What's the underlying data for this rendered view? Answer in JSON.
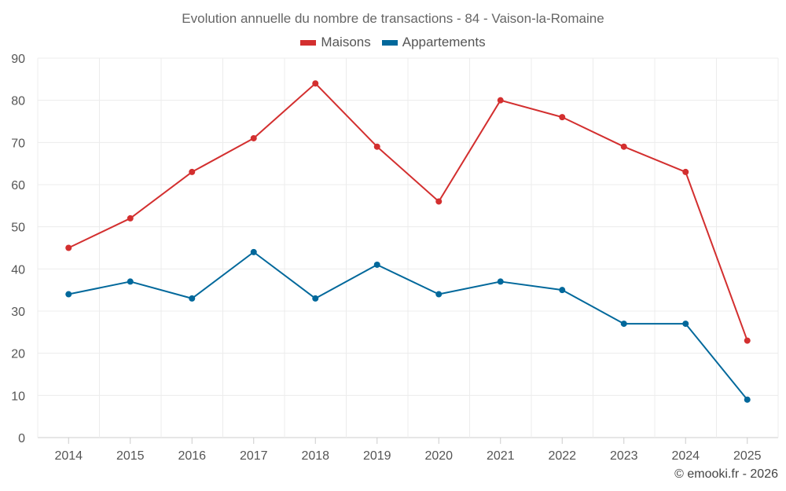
{
  "chart_data": {
    "type": "line",
    "title": "Evolution annuelle du nombre de transactions - 84 - Vaison-la-Romaine",
    "xlabel": "",
    "ylabel": "",
    "categories": [
      "2014",
      "2015",
      "2016",
      "2017",
      "2018",
      "2019",
      "2020",
      "2021",
      "2022",
      "2023",
      "2024",
      "2025"
    ],
    "ylim": [
      0,
      90
    ],
    "yticks": [
      "0",
      "10",
      "20",
      "30",
      "40",
      "50",
      "60",
      "70",
      "80",
      "90"
    ],
    "grid": true,
    "legend_position": "top-center",
    "series": [
      {
        "name": "Maisons",
        "color": "#d32f2f",
        "values": [
          45,
          52,
          63,
          71,
          84,
          69,
          56,
          80,
          76,
          69,
          63,
          23
        ]
      },
      {
        "name": "Appartements",
        "color": "#01689b",
        "values": [
          34,
          37,
          33,
          44,
          33,
          41,
          34,
          37,
          35,
          27,
          27,
          9
        ]
      }
    ]
  },
  "credit": "© emooki.fr - 2026"
}
